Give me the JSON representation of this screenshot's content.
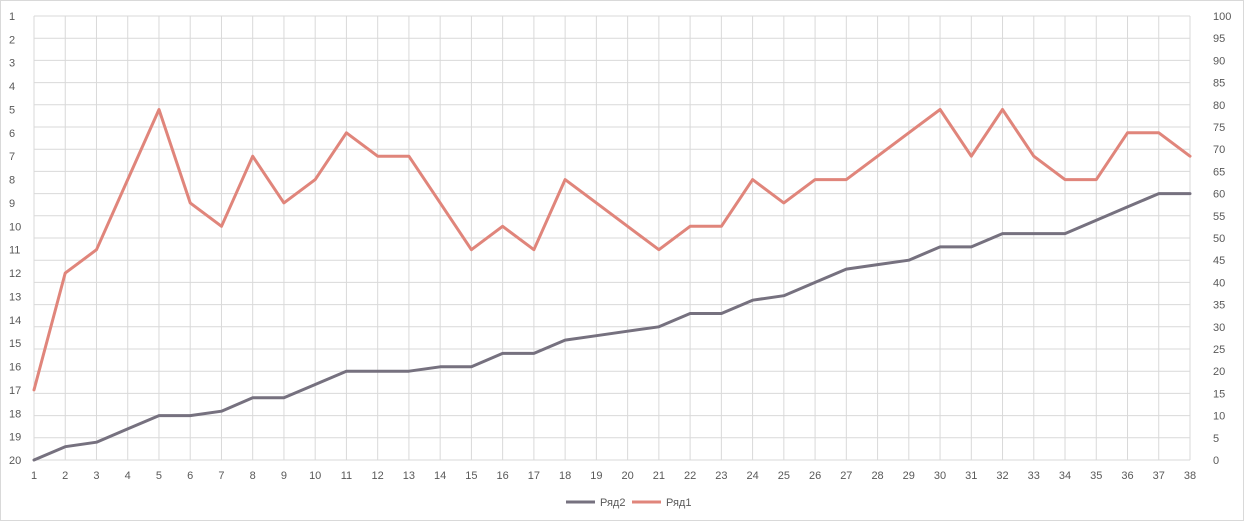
{
  "chart_data": {
    "type": "line",
    "title": "",
    "xlabel": "",
    "ylabel": "",
    "categories": [
      1,
      2,
      3,
      4,
      5,
      6,
      7,
      8,
      9,
      10,
      11,
      12,
      13,
      14,
      15,
      16,
      17,
      18,
      19,
      20,
      21,
      22,
      23,
      24,
      25,
      26,
      27,
      28,
      29,
      30,
      31,
      32,
      33,
      34,
      35,
      36,
      37,
      38
    ],
    "y_left": {
      "ticks": [
        1,
        2,
        3,
        4,
        5,
        6,
        7,
        8,
        9,
        10,
        11,
        12,
        13,
        14,
        15,
        16,
        17,
        18,
        19,
        20
      ],
      "reversed": true,
      "range": [
        1,
        20
      ]
    },
    "y_right": {
      "ticks": [
        0,
        5,
        10,
        15,
        20,
        25,
        30,
        35,
        40,
        45,
        50,
        55,
        60,
        65,
        70,
        75,
        80,
        85,
        90,
        95,
        100
      ],
      "range": [
        0,
        100
      ]
    },
    "grid": true,
    "legend_position": "bottom",
    "series": [
      {
        "name": "Ряд2",
        "axis": "right",
        "color": "#76717f",
        "values": [
          0,
          3,
          4,
          7,
          10,
          10,
          11,
          14,
          14,
          17,
          20,
          20,
          20,
          21,
          21,
          24,
          24,
          27,
          28,
          29,
          30,
          33,
          33,
          36,
          37,
          40,
          43,
          44,
          45,
          48,
          48,
          51,
          51,
          51,
          54,
          57,
          60,
          60
        ]
      },
      {
        "name": "Ряд1",
        "axis": "left",
        "color": "#e0857b",
        "values": [
          17,
          12,
          11,
          8,
          5,
          9,
          10,
          7,
          9,
          8,
          6,
          7,
          7,
          9,
          11,
          10,
          11,
          8,
          9,
          10,
          11,
          10,
          10,
          8,
          9,
          8,
          8,
          7,
          6,
          5,
          7,
          5,
          7,
          8,
          8,
          6,
          6,
          7
        ]
      }
    ]
  }
}
